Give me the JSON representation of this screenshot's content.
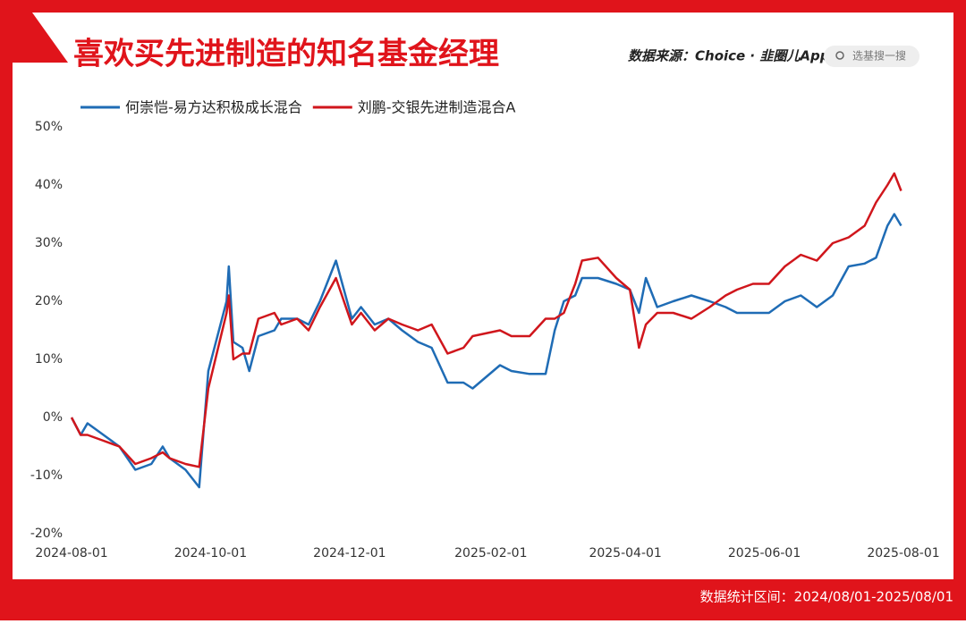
{
  "chart_data": {
    "type": "line",
    "title": "喜欢买先进制造的知名基金经理",
    "source": "数据来源：Choice · 韭圈儿App",
    "search": "选基搜一搜",
    "footnote": "数据统计区间：2024/08/01-2025/08/01",
    "x": [
      "2024-08-01",
      "2024-08-05",
      "2024-08-08",
      "2024-08-15",
      "2024-08-22",
      "2024-08-29",
      "2024-09-05",
      "2024-09-10",
      "2024-09-13",
      "2024-09-20",
      "2024-09-26",
      "2024-09-30",
      "2024-10-08",
      "2024-10-09",
      "2024-10-11",
      "2024-10-15",
      "2024-10-18",
      "2024-10-22",
      "2024-10-29",
      "2024-11-01",
      "2024-11-08",
      "2024-11-13",
      "2024-11-18",
      "2024-11-25",
      "2024-12-02",
      "2024-12-06",
      "2024-12-12",
      "2024-12-18",
      "2024-12-24",
      "2024-12-31",
      "2025-01-06",
      "2025-01-13",
      "2025-01-20",
      "2025-01-24",
      "2025-02-05",
      "2025-02-10",
      "2025-02-18",
      "2025-02-25",
      "2025-03-01",
      "2025-03-05",
      "2025-03-10",
      "2025-03-13",
      "2025-03-20",
      "2025-03-28",
      "2025-04-03",
      "2025-04-07",
      "2025-04-10",
      "2025-04-15",
      "2025-04-22",
      "2025-04-30",
      "2025-05-08",
      "2025-05-15",
      "2025-05-20",
      "2025-05-27",
      "2025-06-03",
      "2025-06-10",
      "2025-06-17",
      "2025-06-24",
      "2025-07-01",
      "2025-07-08",
      "2025-07-15",
      "2025-07-20",
      "2025-07-25",
      "2025-07-28",
      "2025-07-31"
    ],
    "series": [
      {
        "name": "何崇恺-易方达积极成长混合",
        "color": "#1f6cb5",
        "values": [
          0,
          -3,
          -1,
          -3,
          -5,
          -9,
          -8,
          -5,
          -7,
          -9,
          -12,
          8,
          20,
          26,
          13,
          12,
          8,
          14,
          15,
          17,
          17,
          16,
          20,
          27,
          17,
          19,
          16,
          17,
          15,
          13,
          12,
          6,
          6,
          5,
          9,
          8,
          7.5,
          7.5,
          15,
          20,
          21,
          24,
          24,
          23,
          22,
          18,
          24,
          19,
          20,
          21,
          20,
          19,
          18,
          18,
          18,
          20,
          21,
          19,
          21,
          26,
          26.5,
          27.5,
          33,
          35,
          33
        ]
      },
      {
        "name": "刘鹏-交银先进制造混合A",
        "color": "#d0161c",
        "values": [
          0,
          -3,
          -3,
          -4,
          -5,
          -8,
          -7,
          -6,
          -7,
          -8,
          -8.5,
          5,
          18,
          21,
          10,
          11,
          11,
          17,
          18,
          16,
          17,
          15,
          19,
          24,
          16,
          18,
          15,
          17,
          16,
          15,
          16,
          11,
          12,
          14,
          15,
          14,
          14,
          17,
          17,
          18,
          23,
          27,
          27.5,
          24,
          22,
          12,
          16,
          18,
          18,
          17,
          19,
          21,
          22,
          23,
          23,
          26,
          28,
          27,
          30,
          31,
          33,
          37,
          40,
          42,
          39
        ]
      }
    ],
    "xlim": [
      "2024-08-01",
      "2025-08-01"
    ],
    "xticks": [
      "2024-08-01",
      "2024-10-01",
      "2024-12-01",
      "2025-02-01",
      "2025-04-01",
      "2025-06-01",
      "2025-08-01"
    ],
    "ylim": [
      -20,
      50
    ],
    "yticks": [
      {
        "value": -20,
        "label": "-20%"
      },
      {
        "value": -10,
        "label": "-10%"
      },
      {
        "value": 0,
        "label": "0%"
      },
      {
        "value": 10,
        "label": "10%"
      },
      {
        "value": 20,
        "label": "20%"
      },
      {
        "value": 30,
        "label": "30%"
      },
      {
        "value": 40,
        "label": "40%"
      },
      {
        "value": 50,
        "label": "50%"
      }
    ]
  }
}
